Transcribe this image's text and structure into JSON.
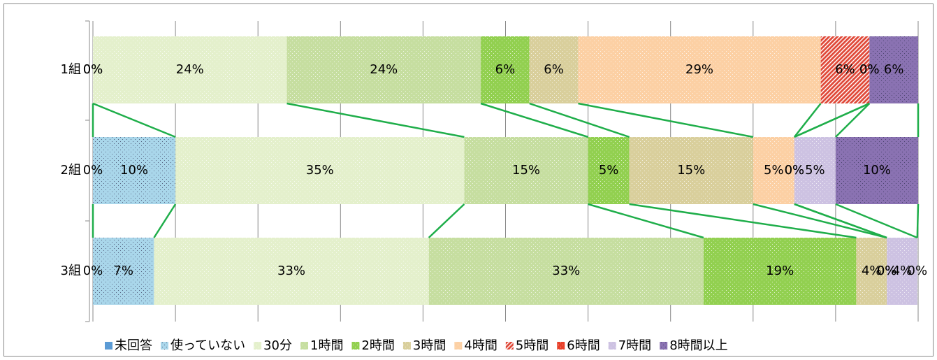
{
  "chart_data": {
    "type": "stacked_barh",
    "categories": [
      "1組",
      "2組",
      "3組"
    ],
    "xlim": [
      0,
      100
    ],
    "xticks": [
      0,
      10,
      20,
      30,
      40,
      50,
      60,
      70,
      80,
      90,
      100
    ],
    "grid": true,
    "legend": "bottom",
    "series": [
      {
        "name": "未回答",
        "color": "#5b9bd5",
        "values": [
          0,
          0,
          0
        ],
        "value_labels": [
          "0%",
          "0%",
          "0%"
        ]
      },
      {
        "name": "使っていない",
        "color": "#a9d6ea",
        "values": [
          0,
          10,
          7.4
        ],
        "value_labels": [
          "0%",
          "10%",
          "7%"
        ]
      },
      {
        "name": "30分",
        "color": "#e4f0cc",
        "values": [
          23.5,
          35,
          33.3
        ],
        "value_labels": [
          "24%",
          "35%",
          "33%"
        ]
      },
      {
        "name": "1時間",
        "color": "#c6dea0",
        "values": [
          23.5,
          15,
          33.3
        ],
        "value_labels": [
          "24%",
          "15%",
          "33%"
        ]
      },
      {
        "name": "2時間",
        "color": "#92d050",
        "values": [
          5.9,
          5,
          18.5
        ],
        "value_labels": [
          "6%",
          "5%",
          "19%"
        ]
      },
      {
        "name": "3時間",
        "color": "#d9cf9c",
        "values": [
          5.9,
          15,
          3.7
        ],
        "value_labels": [
          "6%",
          "15%",
          "4%"
        ]
      },
      {
        "name": "4時間",
        "color": "#fcd0a4",
        "values": [
          29.4,
          5,
          0
        ],
        "value_labels": [
          "29%",
          "5%",
          "0%"
        ]
      },
      {
        "name": "5時間",
        "color": "#e04a3a",
        "values": [
          5.9,
          0,
          0
        ],
        "value_labels": [
          "6%",
          "0%",
          "0%"
        ]
      },
      {
        "name": "6時間",
        "color": "#e8402a",
        "values": [
          0,
          0,
          0
        ],
        "value_labels": [
          "0%",
          "0%",
          "0%"
        ]
      },
      {
        "name": "7時間",
        "color": "#cdc2e2",
        "values": [
          0,
          5,
          3.7
        ],
        "value_labels": [
          "0%",
          "5%",
          "4%"
        ]
      },
      {
        "name": "8時間以上",
        "color": "#8a72b2",
        "values": [
          5.9,
          10,
          0
        ],
        "value_labels": [
          "6%",
          "10%",
          "0%"
        ]
      }
    ]
  }
}
